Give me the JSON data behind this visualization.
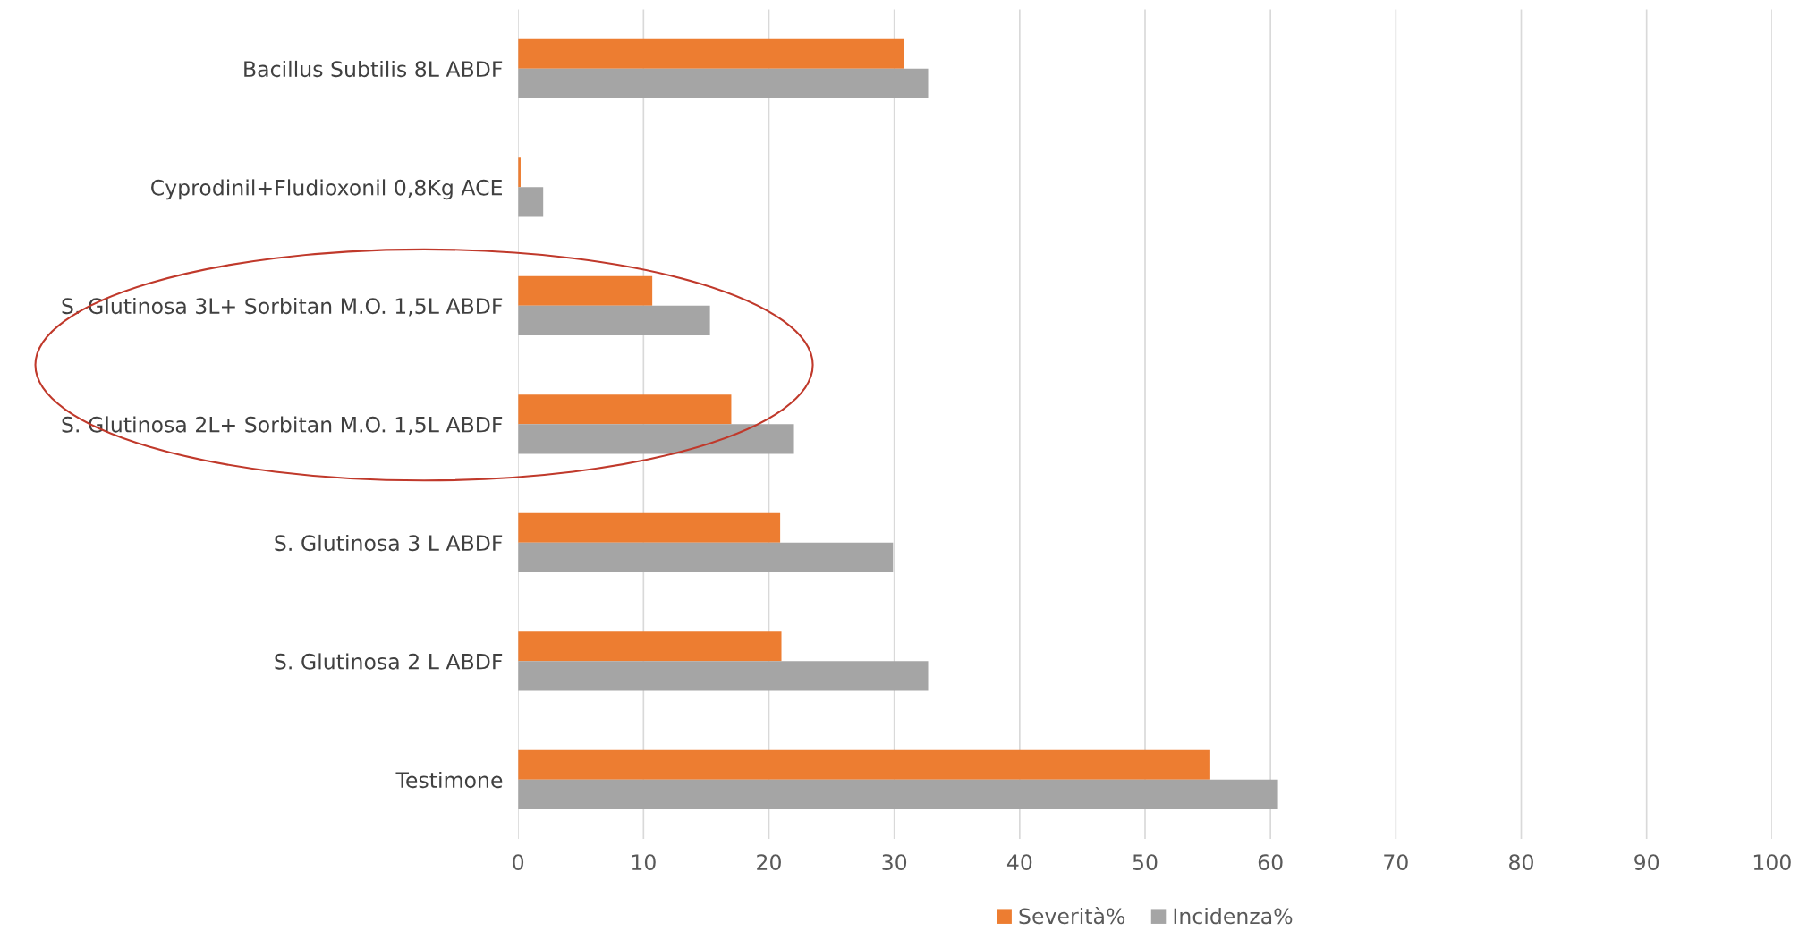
{
  "chart_data": {
    "type": "bar",
    "orientation": "horizontal",
    "categories": [
      "Bacillus Subtilis 8L ABDF",
      "Cyprodinil+Fludioxonil 0,8Kg ACE",
      "S. Glutinosa 3L+ Sorbitan M.O. 1,5L ABDF",
      "S. Glutinosa 2L+ Sorbitan M.O. 1,5L ABDF",
      "S. Glutinosa 3 L ABDF",
      "S. Glutinosa 2 L ABDF",
      "Testimone"
    ],
    "series": [
      {
        "name": "Severità%",
        "color": "#ed7d31",
        "values": [
          30.8,
          0.2,
          10.7,
          17.0,
          20.9,
          21.0,
          55.2
        ]
      },
      {
        "name": "Incidenza%",
        "color": "#a5a5a5",
        "values": [
          32.7,
          2.0,
          15.3,
          22.0,
          29.9,
          32.7,
          60.6
        ]
      }
    ],
    "xlim": [
      0,
      100
    ],
    "xticks": [
      0,
      10,
      20,
      30,
      40,
      50,
      60,
      70,
      80,
      90,
      100
    ],
    "grid": "x",
    "legend": "bottom"
  }
}
